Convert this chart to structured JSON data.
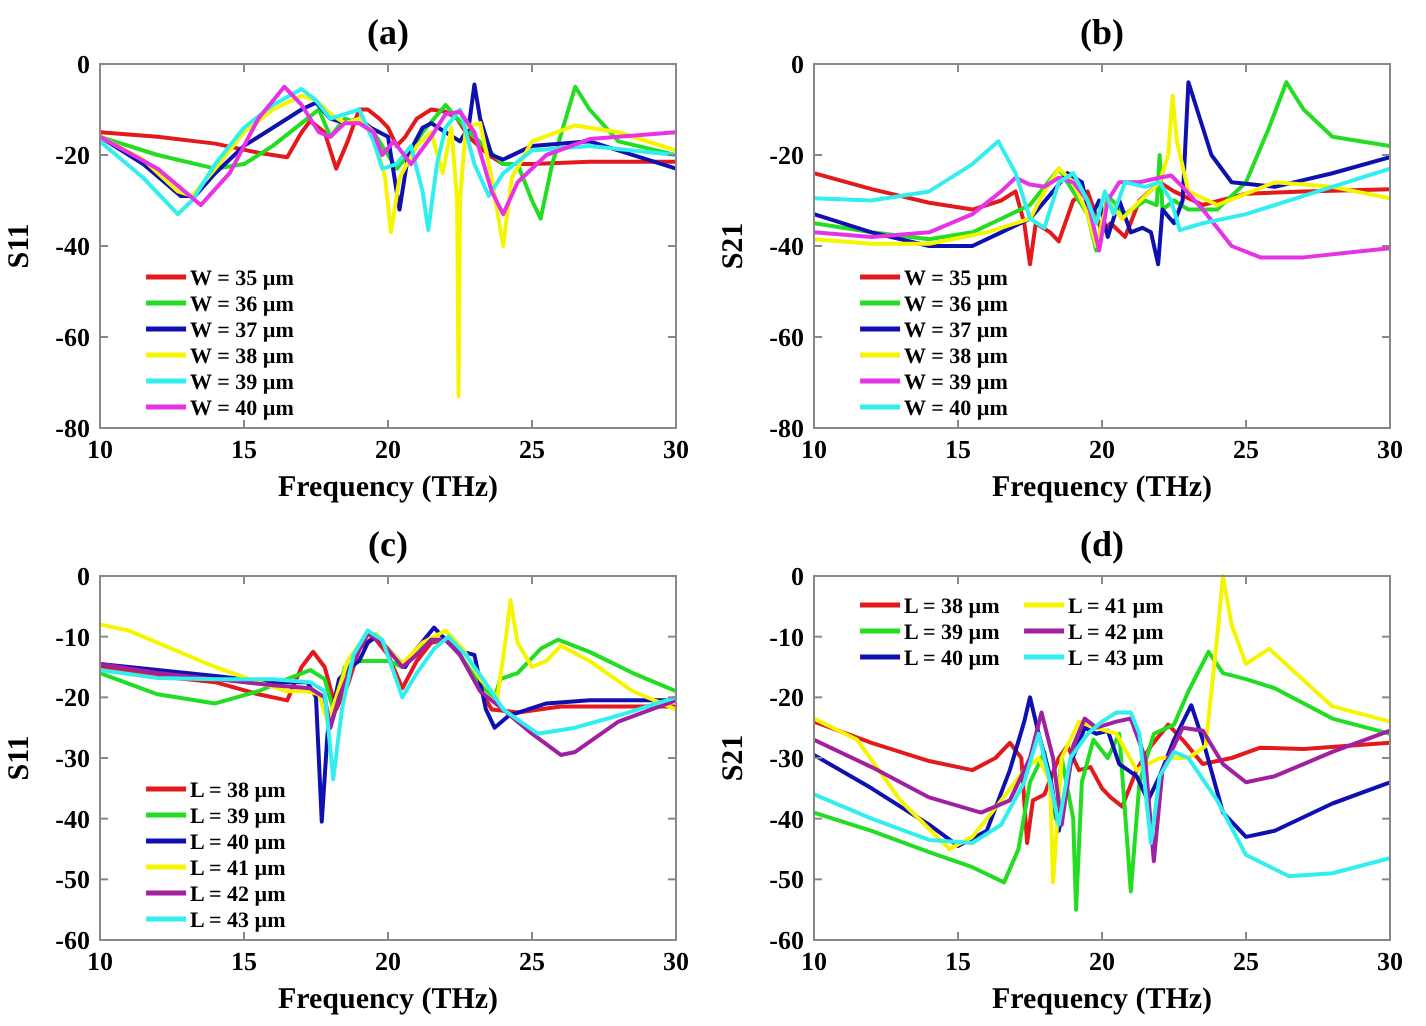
{
  "chart_data": [
    {
      "type": "line",
      "title": "(a)",
      "xlabel": "Frequency (THz)",
      "ylabel": "S11",
      "xlim": [
        10,
        30
      ],
      "xticks": [
        10,
        15,
        20,
        25,
        30
      ],
      "ylim": [
        -80,
        0
      ],
      "yticks": [
        -80,
        -60,
        -40,
        -20,
        0
      ],
      "legend": "bottom left",
      "grid": false,
      "series": [
        {
          "name": "W = 35 µm",
          "color": "#e31a1c",
          "x": [
            10,
            12,
            14,
            15.5,
            16.5,
            17,
            17.3,
            17.8,
            18.2,
            18.6,
            19,
            19.3,
            19.7,
            20,
            20.3,
            20.6,
            21,
            21.5,
            22,
            22.4,
            22.8,
            23.5,
            24,
            25,
            27,
            30
          ],
          "values": [
            -15,
            -16,
            -17.5,
            -19.5,
            -20.5,
            -15,
            -12.5,
            -15,
            -23,
            -17,
            -10,
            -10,
            -12,
            -14,
            -18,
            -16,
            -12,
            -10,
            -10.5,
            -12,
            -16,
            -20,
            -22,
            -22,
            -21.5,
            -21.5
          ]
        },
        {
          "name": "W = 36 µm",
          "color": "#22dd22",
          "x": [
            10,
            12,
            14,
            15,
            16,
            17,
            17.6,
            18,
            18.5,
            19,
            19.5,
            20,
            20.3,
            20.7,
            21.2,
            22,
            22.4,
            23,
            24,
            24.5,
            25,
            25.3,
            25.7,
            26.5,
            27,
            28,
            30
          ],
          "values": [
            -16,
            -20,
            -23,
            -22,
            -18,
            -13,
            -10,
            -16,
            -12,
            -13,
            -15,
            -20,
            -23,
            -20,
            -15,
            -9,
            -12,
            -16,
            -22,
            -22,
            -30,
            -34,
            -22,
            -5,
            -10,
            -17,
            -20
          ]
        },
        {
          "name": "W = 37 µm",
          "color": "#1010b0",
          "x": [
            10,
            11.5,
            12.8,
            13.3,
            14,
            15,
            16,
            17,
            17.5,
            18,
            18.5,
            19,
            19.4,
            20,
            20.4,
            20.7,
            21.2,
            21.5,
            22,
            22.5,
            22.8,
            23,
            23.2,
            23.6,
            24,
            25,
            27,
            30
          ],
          "values": [
            -16,
            -22,
            -29,
            -29,
            -24,
            -18,
            -14,
            -10,
            -8.5,
            -12,
            -13,
            -12,
            -14,
            -16,
            -32,
            -20,
            -14,
            -13,
            -15,
            -17,
            -14,
            -4.5,
            -12,
            -20,
            -21,
            -18,
            -17,
            -23
          ]
        },
        {
          "name": "W = 38 µm",
          "color": "#f5f500",
          "x": [
            10,
            11.5,
            12.7,
            13.2,
            14,
            15,
            16,
            17,
            17.5,
            18,
            18.5,
            19,
            19.5,
            19.9,
            20.1,
            20.4,
            21,
            21.5,
            21.9,
            22.2,
            22.4,
            22.45,
            22.5,
            22.7,
            23.2,
            23.6,
            24,
            24.3,
            25,
            26.5,
            28,
            30
          ],
          "values": [
            -16,
            -21,
            -28,
            -29,
            -23,
            -15,
            -10,
            -7,
            -8,
            -11,
            -13,
            -12,
            -15,
            -25,
            -37,
            -25,
            -18,
            -15,
            -24,
            -14,
            -30,
            -73,
            -30,
            -14,
            -13,
            -25,
            -40,
            -25,
            -17,
            -13.5,
            -15,
            -19
          ]
        },
        {
          "name": "W = 39 µm",
          "color": "#33eeee",
          "x": [
            10,
            11.5,
            12.7,
            13.2,
            14,
            15,
            16,
            17,
            17.5,
            18,
            18.5,
            19,
            19.5,
            19.8,
            20.3,
            20.8,
            21.2,
            21.4,
            21.7,
            22,
            22.5,
            23,
            23.5,
            24,
            25,
            27,
            30
          ],
          "values": [
            -17,
            -25,
            -33,
            -30,
            -22,
            -14,
            -9,
            -5.5,
            -8,
            -12,
            -11,
            -10,
            -17,
            -23,
            -22,
            -18,
            -28,
            -36.5,
            -22,
            -14,
            -10,
            -22,
            -29,
            -24,
            -19,
            -18,
            -20
          ]
        },
        {
          "name": "W = 40 µm",
          "color": "#e633e6",
          "x": [
            10,
            12,
            13.5,
            14.5,
            15.5,
            16.4,
            17,
            17.6,
            18,
            18.5,
            19,
            19.5,
            19.8,
            20.2,
            20.8,
            21.5,
            22,
            22.5,
            23,
            23.6,
            24,
            24.5,
            25.5,
            27,
            30
          ],
          "values": [
            -16,
            -23,
            -31,
            -24,
            -12,
            -5,
            -9,
            -15,
            -16,
            -13,
            -13,
            -15,
            -20,
            -17,
            -22,
            -16,
            -11,
            -10.5,
            -15,
            -28,
            -33,
            -26,
            -20,
            -16.5,
            -15
          ]
        }
      ]
    },
    {
      "type": "line",
      "title": "(b)",
      "xlabel": "Frequency (THz)",
      "ylabel": "S21",
      "xlim": [
        10,
        30
      ],
      "xticks": [
        10,
        15,
        20,
        25,
        30
      ],
      "ylim": [
        -80,
        0
      ],
      "yticks": [
        -80,
        -60,
        -40,
        -20,
        0
      ],
      "legend": "bottom left",
      "grid": false,
      "series": [
        {
          "name": "W = 35 µm",
          "color": "#e31a1c",
          "x": [
            10,
            12,
            14,
            15.5,
            16.5,
            17,
            17.3,
            17.5,
            17.7,
            18.2,
            18.5,
            19,
            19.5,
            20,
            20.3,
            20.8,
            21.3,
            22,
            22.5,
            23.5,
            25,
            27,
            30
          ],
          "values": [
            -24,
            -27.5,
            -30.5,
            -32,
            -30,
            -28,
            -35,
            -44,
            -35,
            -37,
            -39,
            -30,
            -28,
            -37,
            -35,
            -38,
            -30,
            -26,
            -28,
            -31,
            -28.5,
            -28,
            -27.5
          ]
        },
        {
          "name": "W = 36 µm",
          "color": "#22dd22",
          "x": [
            10,
            12,
            14,
            15.5,
            16.5,
            17.5,
            18,
            18.5,
            19,
            19.5,
            19.8,
            20.2,
            20.8,
            21.5,
            21.9,
            22,
            22.1,
            22.5,
            23,
            24,
            25,
            25.8,
            26.4,
            27,
            28,
            30
          ],
          "values": [
            -35,
            -37,
            -38.5,
            -37,
            -34,
            -31,
            -27,
            -23,
            -28,
            -33,
            -41,
            -29,
            -33,
            -30,
            -31,
            -20,
            -32,
            -30,
            -32,
            -32,
            -26,
            -14,
            -4,
            -10,
            -16,
            -18
          ]
        },
        {
          "name": "W = 37 µm",
          "color": "#1010b0",
          "x": [
            10,
            12,
            14,
            15.5,
            16.5,
            17.5,
            18.3,
            18.8,
            19.3,
            19.6,
            19.9,
            20.2,
            20.6,
            21,
            21.4,
            21.7,
            21.95,
            22.1,
            22.5,
            22.8,
            23,
            23.3,
            23.8,
            24.5,
            26,
            28,
            30
          ],
          "values": [
            -33,
            -37,
            -40,
            -40,
            -37,
            -34,
            -28,
            -24,
            -26,
            -34,
            -30,
            -38,
            -30,
            -37,
            -36,
            -37,
            -44,
            -32,
            -35,
            -30,
            -4,
            -10,
            -20,
            -26,
            -27,
            -24,
            -20.5
          ]
        },
        {
          "name": "W = 38 µm",
          "color": "#f5f500",
          "x": [
            10,
            12,
            14,
            16,
            17.5,
            18,
            18.5,
            19,
            19.5,
            19.8,
            20.2,
            20.7,
            21.5,
            22,
            22.3,
            22.45,
            22.6,
            23,
            24,
            26,
            28,
            30
          ],
          "values": [
            -38.5,
            -39.5,
            -39.5,
            -37,
            -34,
            -28,
            -23,
            -26,
            -33,
            -40,
            -30,
            -34,
            -29,
            -26,
            -20,
            -7,
            -17,
            -28,
            -31,
            -26,
            -27,
            -29.5
          ]
        },
        {
          "name": "W = 39 µm",
          "color": "#e633e6",
          "x": [
            10,
            12,
            14,
            15.5,
            16.5,
            17,
            17.5,
            18,
            18.5,
            19,
            19.5,
            19.9,
            20.2,
            20.6,
            21.3,
            22,
            22.4,
            22.8,
            23.5,
            24.5,
            25.5,
            27,
            28.5,
            30
          ],
          "values": [
            -37,
            -38,
            -37,
            -33,
            -28,
            -25,
            -26.5,
            -27,
            -25,
            -26,
            -30,
            -41,
            -30,
            -26,
            -26,
            -25,
            -24.5,
            -27,
            -32,
            -40,
            -42.5,
            -42.5,
            -41.5,
            -40.5
          ]
        },
        {
          "name": "W = 40 µm",
          "color": "#33eeee",
          "x": [
            10,
            12,
            14,
            15.5,
            16.4,
            17,
            17.5,
            18,
            18.5,
            19,
            19.5,
            19.8,
            20.1,
            20.4,
            20.8,
            21.5,
            22,
            22.4,
            22.7,
            23.5,
            25,
            27,
            30
          ],
          "values": [
            -29.5,
            -30,
            -28,
            -22,
            -17,
            -24,
            -34,
            -36,
            -26,
            -24,
            -30,
            -35,
            -28,
            -33,
            -26,
            -27,
            -26,
            -30,
            -36.5,
            -35,
            -33,
            -29,
            -23
          ]
        }
      ]
    },
    {
      "type": "line",
      "title": "(c)",
      "xlabel": "Frequency (THz)",
      "ylabel": "S11",
      "xlim": [
        10,
        30
      ],
      "xticks": [
        10,
        15,
        20,
        25,
        30
      ],
      "ylim": [
        -60,
        0
      ],
      "yticks": [
        -60,
        -50,
        -40,
        -30,
        -20,
        -10,
        0
      ],
      "legend": "bottom left",
      "grid": false,
      "series": [
        {
          "name": "L = 38 µm",
          "color": "#e31a1c",
          "x": [
            10,
            12,
            14,
            15.5,
            16.5,
            17,
            17.4,
            17.8,
            18.2,
            18.6,
            19,
            19.5,
            20,
            20.5,
            21,
            21.5,
            22,
            22.5,
            23,
            23.6,
            24.5,
            26,
            30
          ],
          "values": [
            -15,
            -16.5,
            -17.5,
            -19.5,
            -20.5,
            -15,
            -12.5,
            -15,
            -22,
            -18,
            -12,
            -10,
            -13,
            -18.5,
            -14,
            -11,
            -10.5,
            -13,
            -17,
            -22,
            -22.5,
            -21.5,
            -21.5
          ]
        },
        {
          "name": "L = 39 µm",
          "color": "#22dd22",
          "x": [
            10,
            12,
            14,
            15.5,
            16.5,
            17.3,
            17.8,
            18.1,
            18.5,
            19,
            19.5,
            20,
            20.5,
            21,
            21.5,
            22,
            22.5,
            23.2,
            23.7,
            23.9,
            24.5,
            25.3,
            25.9,
            27,
            28.5,
            30
          ],
          "values": [
            -16,
            -19.5,
            -21,
            -19,
            -17,
            -15.5,
            -17,
            -22,
            -15,
            -14,
            -14,
            -14,
            -15,
            -12,
            -10.5,
            -10.5,
            -13,
            -18,
            -20,
            -17,
            -16,
            -12,
            -10.5,
            -12.5,
            -16,
            -19
          ]
        },
        {
          "name": "L = 40 µm",
          "color": "#1010b0",
          "x": [
            10,
            12,
            14,
            16,
            17.2,
            17.5,
            17.7,
            17.9,
            18.3,
            18.7,
            19,
            19.3,
            19.6,
            20,
            20.6,
            21,
            21.6,
            22.1,
            22.6,
            23,
            23.4,
            23.7,
            24.2,
            25.5,
            27,
            30
          ],
          "values": [
            -14.5,
            -15.5,
            -16.5,
            -17.5,
            -17.5,
            -20,
            -40.5,
            -26,
            -17,
            -15,
            -14,
            -11,
            -10,
            -12,
            -15,
            -12,
            -8.5,
            -11,
            -12.5,
            -13,
            -22,
            -25,
            -23,
            -21,
            -20.5,
            -20.5
          ]
        },
        {
          "name": "L = 41 µm",
          "color": "#f5f500",
          "x": [
            10,
            11,
            12.5,
            14,
            15.5,
            16.5,
            17.2,
            17.6,
            17.9,
            18.2,
            18.6,
            19.2,
            19.6,
            20,
            20.5,
            21.2,
            22,
            22.6,
            23.2,
            23.8,
            24.1,
            24.25,
            24.5,
            25,
            25.5,
            26,
            27,
            28.5,
            30
          ],
          "values": [
            -8,
            -9,
            -12,
            -15,
            -17.5,
            -19,
            -19,
            -19.5,
            -24,
            -20,
            -14,
            -10,
            -9.5,
            -12,
            -14.5,
            -11,
            -9,
            -12,
            -17,
            -20,
            -10,
            -4,
            -11,
            -15,
            -14,
            -11.5,
            -14,
            -19,
            -22
          ]
        },
        {
          "name": "L = 42 µm",
          "color": "#a020a0",
          "x": [
            10,
            12,
            14,
            16,
            17.3,
            17.8,
            18,
            18.3,
            18.8,
            19.3,
            19.8,
            20.5,
            21,
            21.5,
            22,
            22.5,
            23.2,
            24,
            25,
            26,
            26.5,
            28,
            30
          ],
          "values": [
            -14.5,
            -16,
            -17,
            -18,
            -18.5,
            -20,
            -25,
            -20,
            -14,
            -9.5,
            -11,
            -15,
            -13,
            -10.5,
            -10.5,
            -13,
            -19,
            -22,
            -26,
            -29.5,
            -29,
            -24,
            -20.5
          ]
        },
        {
          "name": "L = 43 µm",
          "color": "#33eeee",
          "x": [
            10,
            12,
            14,
            16,
            17.3,
            17.8,
            18.1,
            18.4,
            18.8,
            19.3,
            19.8,
            20.5,
            21,
            21.6,
            22.1,
            22.7,
            23.3,
            24,
            25.2,
            26.5,
            28,
            30
          ],
          "values": [
            -15.5,
            -16.8,
            -17,
            -17,
            -17.5,
            -19,
            -33.5,
            -22,
            -13,
            -9,
            -10.5,
            -20,
            -16,
            -12,
            -10,
            -13,
            -17,
            -22,
            -26,
            -25,
            -23,
            -20
          ]
        }
      ]
    },
    {
      "type": "line",
      "title": "(d)",
      "xlabel": "Frequency (THz)",
      "ylabel": "S21",
      "xlim": [
        10,
        30
      ],
      "xticks": [
        10,
        15,
        20,
        25,
        30
      ],
      "ylim": [
        -60,
        0
      ],
      "yticks": [
        -60,
        -50,
        -40,
        -30,
        -20,
        -10,
        0
      ],
      "legend": "top left",
      "grid": false,
      "series": [
        {
          "name": "L = 38 µm",
          "color": "#e31a1c",
          "x": [
            10,
            12,
            14,
            15.5,
            16.3,
            16.8,
            17.2,
            17.4,
            17.6,
            18,
            18.5,
            18.8,
            19.2,
            19.6,
            20,
            20.3,
            20.7,
            21.2,
            21.7,
            22.3,
            22.8,
            23.5,
            24.5,
            25.5,
            27,
            30
          ],
          "values": [
            -24,
            -27.5,
            -30.5,
            -32,
            -30,
            -27.5,
            -30,
            -44,
            -37,
            -36,
            -30,
            -28,
            -32,
            -31.5,
            -35,
            -36.5,
            -38,
            -32,
            -28,
            -24.5,
            -27,
            -31,
            -30,
            -28.3,
            -28.5,
            -27.5
          ]
        },
        {
          "name": "L = 39 µm",
          "color": "#22dd22",
          "x": [
            10,
            12,
            14,
            15.5,
            16.6,
            17.1,
            17.5,
            18,
            18.4,
            18.6,
            19,
            19.1,
            19.3,
            19.7,
            20.2,
            20.6,
            21,
            21.3,
            21.8,
            22.5,
            23,
            23.7,
            24.2,
            25,
            26,
            28,
            30
          ],
          "values": [
            -39,
            -42,
            -45.5,
            -48,
            -50.5,
            -45,
            -34,
            -29,
            -40,
            -30,
            -40,
            -55,
            -34,
            -27,
            -30,
            -26,
            -52,
            -34,
            -26,
            -24.5,
            -19,
            -12.5,
            -16,
            -17,
            -18.5,
            -23.5,
            -26
          ]
        },
        {
          "name": "L = 40 µm",
          "color": "#1010b0",
          "x": [
            10,
            12,
            14,
            15,
            16,
            16.8,
            17.3,
            17.5,
            17.8,
            18.2,
            18.5,
            18.9,
            19.4,
            19.8,
            20.2,
            20.6,
            21.2,
            21.6,
            22,
            22.5,
            23.1,
            23.5,
            24.2,
            25,
            26,
            28,
            30
          ],
          "values": [
            -29.5,
            -35,
            -41,
            -44.5,
            -42,
            -32,
            -24,
            -20,
            -26,
            -33,
            -42,
            -31,
            -25,
            -26,
            -25.5,
            -31,
            -33,
            -37,
            -33,
            -27,
            -21.3,
            -27,
            -39,
            -43,
            -42,
            -37.5,
            -34
          ]
        },
        {
          "name": "L = 41 µm",
          "color": "#f5f500",
          "x": [
            10,
            11.5,
            13,
            14.7,
            15.5,
            16.5,
            17.3,
            17.8,
            18.2,
            18.3,
            18.6,
            19.2,
            19.8,
            20.5,
            21.2,
            22,
            23,
            23.6,
            24,
            24.2,
            24.5,
            25,
            25.8,
            26.5,
            28,
            30
          ],
          "values": [
            -23.5,
            -27,
            -37,
            -45,
            -43,
            -37,
            -32,
            -30,
            -34,
            -50.5,
            -30,
            -24,
            -25,
            -26,
            -32,
            -30,
            -30,
            -28,
            -10,
            0,
            -8,
            -14.5,
            -12,
            -15,
            -21.5,
            -24
          ]
        },
        {
          "name": "L = 42 µm",
          "color": "#a020a0",
          "x": [
            10,
            12,
            14,
            15.8,
            16.8,
            17.5,
            17.9,
            18.3,
            18.6,
            19,
            19.4,
            19.8,
            20.5,
            21,
            21.5,
            21.8,
            22.1,
            22.8,
            23.5,
            24.2,
            25,
            26,
            28,
            30
          ],
          "values": [
            -27,
            -31.5,
            -36.5,
            -39,
            -37,
            -30,
            -22.5,
            -30,
            -41,
            -28,
            -23.5,
            -25,
            -24,
            -23.5,
            -30,
            -47,
            -32,
            -25,
            -25.5,
            -31,
            -34,
            -33,
            -29,
            -25.5
          ]
        },
        {
          "name": "L = 43 µm",
          "color": "#33eeee",
          "x": [
            10,
            12,
            14,
            15.5,
            16.5,
            17.3,
            17.8,
            18.2,
            18.5,
            18.9,
            19.5,
            20,
            20.5,
            21,
            21.3,
            21.7,
            22,
            22.5,
            23,
            24,
            25,
            26.5,
            28,
            30
          ],
          "values": [
            -36,
            -40,
            -43.5,
            -44,
            -41,
            -34,
            -26,
            -34,
            -41,
            -30,
            -26,
            -24,
            -22.5,
            -22.5,
            -26,
            -44,
            -33,
            -29,
            -30,
            -37,
            -46,
            -49.5,
            -49,
            -46.5
          ]
        }
      ]
    }
  ]
}
